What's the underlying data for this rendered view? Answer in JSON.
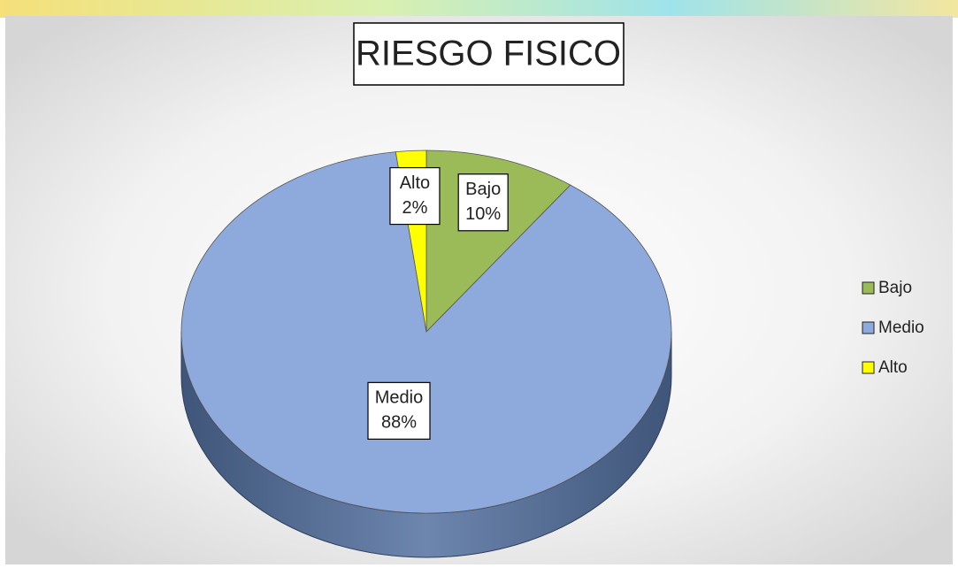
{
  "chart_data": {
    "type": "pie",
    "title": "RIESGO FISICO",
    "categories": [
      "Bajo",
      "Medio",
      "Alto"
    ],
    "values": [
      10,
      88,
      2
    ],
    "value_labels": [
      "10%",
      "88%",
      "2%"
    ],
    "colors": [
      "#9bbb59",
      "#8eaadc",
      "#ffff00"
    ],
    "legend": "right"
  }
}
